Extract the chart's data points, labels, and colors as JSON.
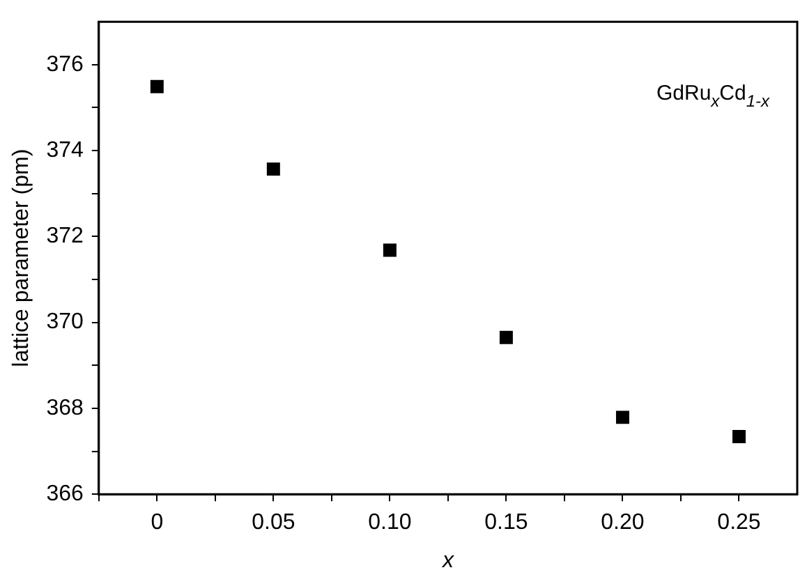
{
  "chart_data": {
    "type": "scatter",
    "xlabel": "x",
    "ylabel": "lattice parameter (pm)",
    "annotations": [
      "GdRu$_{x}$Cd$_{1-x}$"
    ],
    "x": [
      0,
      0.05,
      0.1,
      0.15,
      0.2,
      0.25
    ],
    "series": [
      {
        "color": "#000000",
        "values": [
          375.49,
          373.57,
          371.68,
          369.65,
          367.79,
          367.34
        ]
      }
    ],
    "marker": "square",
    "grid": false,
    "legend": false,
    "xlim": [
      -0.025,
      0.275
    ],
    "xticks": [
      {
        "value": -0.025,
        "label": null
      },
      0,
      {
        "value": 0.025,
        "label": null
      },
      0.05,
      {
        "value": 0.075,
        "label": null
      },
      {
        "value": 0.1,
        "label": "0.10"
      },
      {
        "value": 0.125,
        "label": null
      },
      0.15,
      {
        "value": 0.175,
        "label": null
      },
      {
        "value": 0.2,
        "label": "0.20"
      },
      {
        "value": 0.225,
        "label": null
      },
      0.25
    ],
    "ylim": [
      366,
      377
    ],
    "yticks": [
      366,
      {
        "value": 367,
        "label": null
      },
      368,
      {
        "value": 369,
        "label": null
      },
      370,
      {
        "value": 371,
        "label": null
      },
      372,
      {
        "value": 373,
        "label": null
      },
      374,
      {
        "value": 375,
        "label": null
      },
      376
    ]
  }
}
